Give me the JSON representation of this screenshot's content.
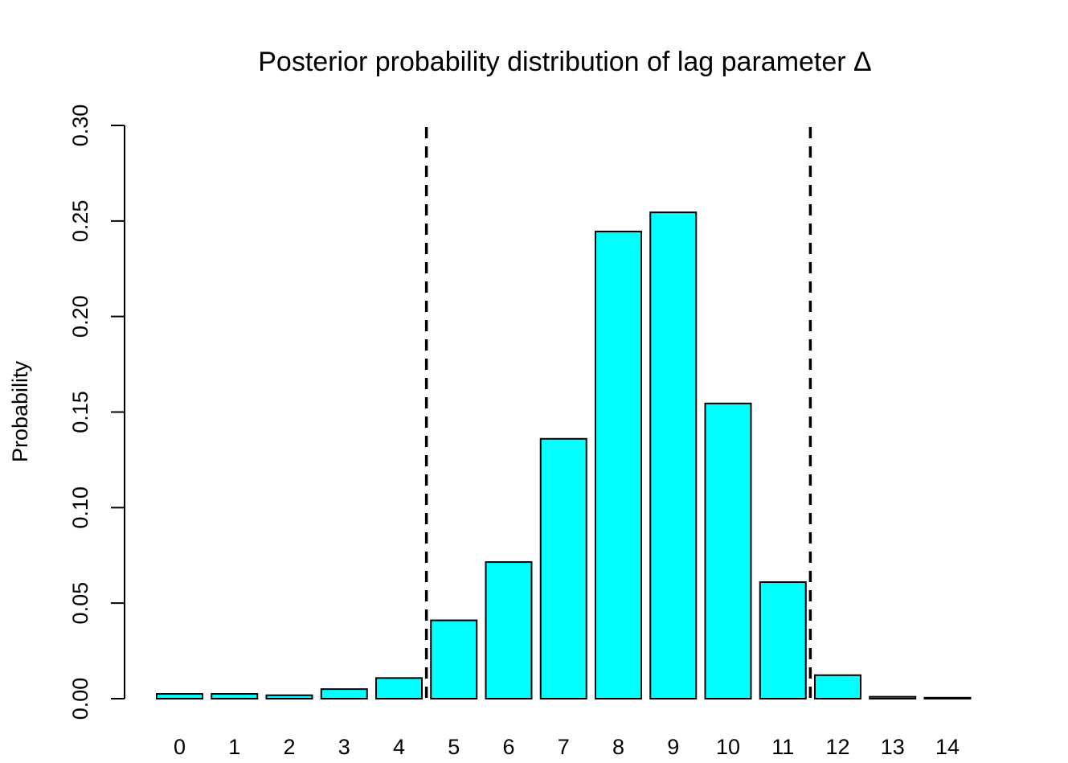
{
  "chart_data": {
    "type": "bar",
    "title": "Posterior probability distribution of lag parameter Δ",
    "xlabel": "",
    "ylabel": "Probability",
    "categories": [
      "0",
      "1",
      "2",
      "3",
      "4",
      "5",
      "6",
      "7",
      "8",
      "9",
      "10",
      "11",
      "12",
      "13",
      "14"
    ],
    "values": [
      0.0025,
      0.0025,
      0.0018,
      0.005,
      0.0108,
      0.041,
      0.0715,
      0.136,
      0.2445,
      0.2545,
      0.1545,
      0.061,
      0.0123,
      0.001,
      0.0005
    ],
    "ylim": [
      0,
      0.3
    ],
    "yticks": [
      "0.00",
      "0.05",
      "0.10",
      "0.15",
      "0.20",
      "0.25",
      "0.30"
    ],
    "ytick_values": [
      0,
      0.05,
      0.1,
      0.15,
      0.2,
      0.25,
      0.3
    ],
    "reference_lines": [
      {
        "style": "dashed",
        "x_between": [
          "4",
          "5"
        ]
      },
      {
        "style": "dashed",
        "x_between": [
          "11",
          "12"
        ]
      }
    ],
    "bar_color": "#00ffff",
    "grid": false,
    "legend": "none"
  }
}
